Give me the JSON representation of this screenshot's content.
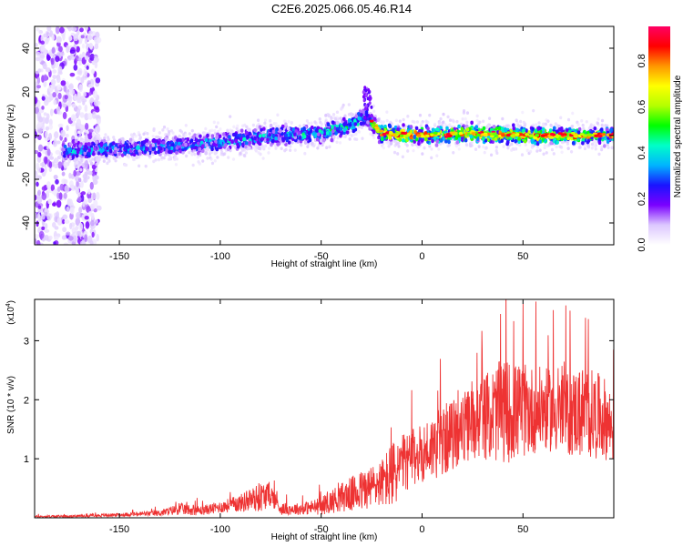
{
  "figure": {
    "title": "C2E6.2025.066.05.46.R14"
  },
  "chart_data": [
    {
      "type": "heatmap",
      "xlabel": "Height of straight line (km)",
      "ylabel": "Frequency (Hz)",
      "xlim": [
        -192,
        95
      ],
      "ylim": [
        -50,
        50
      ],
      "xticks": [
        -150,
        -100,
        -50,
        0,
        50
      ],
      "yticks": [
        -40,
        -20,
        0,
        20,
        40
      ],
      "colorbar": {
        "label": "Normalized spectral amplitude",
        "range": [
          0.0,
          0.95
        ],
        "ticks": [
          "0.0",
          "0.2",
          "0.4",
          "0.6",
          "0.8"
        ],
        "colors": [
          "#ffffff",
          "#dcc7ff",
          "#7a00ff",
          "#1a14ff",
          "#00b4ff",
          "#00ffc8",
          "#00ff00",
          "#b4ff00",
          "#ffff00",
          "#ff9600",
          "#ff0000",
          "#ff0064"
        ]
      },
      "ridge": {
        "description_points_x": [
          -175,
          -150,
          -125,
          -100,
          -75,
          -50,
          -35,
          -28,
          -20,
          0,
          25,
          50,
          75,
          95
        ],
        "frequency_hz": [
          -7,
          -6,
          -5,
          -3,
          0,
          1,
          5,
          9,
          1,
          0,
          1,
          0,
          0,
          0
        ],
        "peak_amplitude": [
          0.45,
          0.4,
          0.4,
          0.45,
          0.45,
          0.5,
          0.55,
          0.5,
          0.8,
          0.9,
          0.85,
          0.9,
          0.75,
          0.6
        ]
      }
    },
    {
      "type": "line",
      "xlabel": "Height of straight line (km)",
      "ylabel": "SNR (10 * v/v)",
      "scale_label": "(x10",
      "scale_exponent": "4",
      "xlim": [
        -192,
        95
      ],
      "ylim": [
        0,
        3.7
      ],
      "xticks": [
        -150,
        -100,
        -50,
        0,
        50
      ],
      "yticks": [
        1,
        2,
        3
      ],
      "color": "#ee3333",
      "series": [
        {
          "x": [
            -192,
            -170,
            -150,
            -130,
            -120,
            -110,
            -100,
            -90,
            -80,
            -75,
            -70,
            -60,
            -50,
            -40,
            -30,
            -20,
            -15,
            -10,
            -5,
            0,
            10,
            20,
            30,
            40,
            50,
            60,
            70,
            80,
            90,
            95
          ],
          "y": [
            0.02,
            0.03,
            0.05,
            0.08,
            0.15,
            0.12,
            0.18,
            0.25,
            0.35,
            0.4,
            0.15,
            0.15,
            0.2,
            0.35,
            0.45,
            0.6,
            0.7,
            0.9,
            1.0,
            1.1,
            1.3,
            1.5,
            1.7,
            1.8,
            1.8,
            1.85,
            1.75,
            1.8,
            1.7,
            1.5
          ],
          "spread": [
            0.02,
            0.02,
            0.03,
            0.05,
            0.1,
            0.08,
            0.1,
            0.15,
            0.25,
            0.2,
            0.1,
            0.1,
            0.15,
            0.25,
            0.35,
            0.4,
            0.6,
            0.5,
            0.5,
            0.5,
            0.6,
            0.6,
            0.7,
            0.9,
            0.8,
            0.7,
            0.7,
            0.8,
            0.7,
            0.6
          ]
        }
      ]
    }
  ]
}
